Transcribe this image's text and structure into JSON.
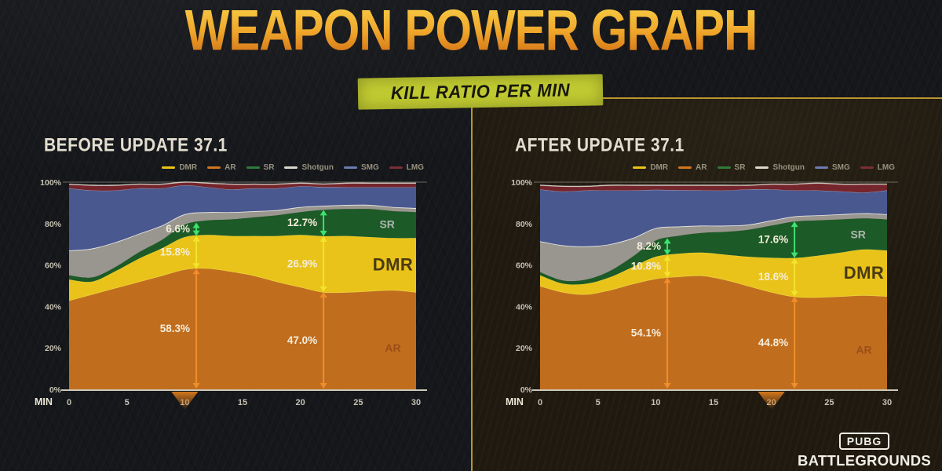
{
  "title": "WEAPON POWER GRAPH",
  "subtitle": "KILL RATIO PER MIN",
  "logo": {
    "pubg": "PUBG",
    "battlegrounds": "BATTLEGROUNDS"
  },
  "colors": {
    "accent_line": "#b9952e",
    "badge_bg": "#c2cc31",
    "arrow_sr": "#3ce36e",
    "arrow_dmr": "#f2e42c",
    "arrow_ar": "#ef8e2a"
  },
  "legend": [
    {
      "label": "DMR",
      "color": "#e9c319"
    },
    {
      "label": "AR",
      "color": "#d1761f"
    },
    {
      "label": "SR",
      "color": "#2f7a3a"
    },
    {
      "label": "Shotgun",
      "color": "#d9d6cc"
    },
    {
      "label": "SMG",
      "color": "#6d7bb0"
    },
    {
      "label": "LMG",
      "color": "#7c2e35"
    }
  ],
  "axis": {
    "x_label": "MIN",
    "x_ticks": [
      0,
      5,
      10,
      15,
      20,
      25,
      30
    ],
    "y_ticks": [
      "100%",
      "80%",
      "60%",
      "40%",
      "20%",
      "0%"
    ],
    "y_values": [
      100,
      80,
      60,
      40,
      20,
      0
    ],
    "x_range": [
      0,
      30
    ],
    "y_range": [
      0,
      100
    ]
  },
  "chart_data": [
    {
      "type": "area",
      "stacked": true,
      "title": "BEFORE UPDATE 37.1",
      "x": [
        0,
        2,
        4,
        6,
        8,
        10,
        12,
        14,
        16,
        18,
        20,
        22,
        24,
        26,
        28,
        30
      ],
      "series": [
        {
          "name": "AR",
          "fill": "#c16d1e",
          "edge": "#eccf3f",
          "edge_w": 1.6,
          "values": [
            43,
            46,
            49,
            52,
            55,
            58,
            58.5,
            57,
            55,
            52,
            49.5,
            47,
            47,
            47.5,
            48,
            47
          ]
        },
        {
          "name": "DMR",
          "fill": "#e9c319",
          "edge": "#edd84e",
          "edge_w": 0.8,
          "values": [
            10,
            6,
            8,
            11,
            13,
            15.5,
            16,
            17,
            19,
            22,
            25,
            26.9,
            27,
            26,
            25,
            26
          ]
        },
        {
          "name": "SR",
          "fill": "#1c5a27",
          "edge": "",
          "edge_w": 0,
          "values": [
            2,
            2,
            2,
            3,
            4,
            6,
            7,
            8,
            9,
            10,
            11,
            12.7,
            13,
            13.5,
            13,
            12.5
          ]
        },
        {
          "name": "Shotgun",
          "fill": "#98968e",
          "edge": "#eceae4",
          "edge_w": 1.7,
          "values": [
            12,
            14,
            12,
            9,
            7,
            5,
            4,
            3.5,
            3,
            2.5,
            2.5,
            2,
            2,
            2,
            2,
            2
          ]
        },
        {
          "name": "SMG",
          "fill": "#4a5890",
          "edge": "#a9a9bc",
          "edge_w": 0.8,
          "values": [
            30,
            28,
            25,
            22,
            18,
            14,
            12,
            11,
            11,
            10.5,
            10,
            9,
            8.5,
            8.5,
            9.5,
            10
          ]
        },
        {
          "name": "LMG",
          "fill": "#74262c",
          "edge": "#cdc5bd",
          "edge_w": 1.4,
          "values": [
            2,
            2.5,
            2.5,
            2,
            2,
            1.5,
            2,
            2.5,
            2,
            2,
            1.5,
            1.5,
            2,
            2,
            2,
            2
          ]
        }
      ],
      "annotations": [
        {
          "min": 11,
          "sr": "6.6%",
          "dmr": "15.8%",
          "ar": "58.3%"
        },
        {
          "min": 22,
          "sr": "12.7%",
          "dmr": "26.9%",
          "ar": "47.0%"
        }
      ],
      "area_labels": {
        "sr": "SR",
        "dmr": "DMR",
        "ar": "AR"
      },
      "pointer_min": 10
    },
    {
      "type": "area",
      "stacked": true,
      "title": "AFTER UPDATE 37.1",
      "x": [
        0,
        2,
        4,
        6,
        8,
        10,
        12,
        14,
        16,
        18,
        20,
        22,
        24,
        26,
        28,
        30
      ],
      "series": [
        {
          "name": "AR",
          "fill": "#c16d1e",
          "edge": "#eccf3f",
          "edge_w": 1.6,
          "values": [
            50,
            47,
            46,
            48,
            51,
            53.5,
            54.5,
            55,
            53,
            50,
            47,
            44.8,
            44.5,
            45,
            45.5,
            45
          ]
        },
        {
          "name": "DMR",
          "fill": "#e9c319",
          "edge": "#edd84e",
          "edge_w": 0.8,
          "values": [
            5,
            4,
            5,
            6,
            8,
            10.5,
            11,
            11,
            12,
            14,
            16.5,
            18.6,
            20,
            21,
            22,
            22
          ]
        },
        {
          "name": "SR",
          "fill": "#1c5a27",
          "edge": "",
          "edge_w": 0,
          "values": [
            1.5,
            1.5,
            2,
            3,
            5,
            7.8,
            8.6,
            9.5,
            11,
            13,
            15.5,
            17.6,
            17,
            16,
            15,
            15
          ]
        },
        {
          "name": "Shotgun",
          "fill": "#98968e",
          "edge": "#eceae4",
          "edge_w": 1.7,
          "values": [
            15,
            17,
            16,
            13,
            9,
            6,
            4.5,
            3.5,
            3,
            2.5,
            2.5,
            2.5,
            2.5,
            2.5,
            2.5,
            2.5
          ]
        },
        {
          "name": "SMG",
          "fill": "#4a5890",
          "edge": "#a9a9bc",
          "edge_w": 0.8,
          "values": [
            25,
            26,
            27,
            26,
            23,
            18.5,
            17.5,
            17,
            17,
            17,
            15,
            12.5,
            12,
            11,
            10,
            11.5
          ]
        },
        {
          "name": "LMG",
          "fill": "#74262c",
          "edge": "#cdc5bd",
          "edge_w": 1.4,
          "values": [
            2,
            2.5,
            2,
            2.5,
            2.5,
            2.2,
            2.4,
            2.5,
            2.5,
            2,
            2.5,
            3,
            3.5,
            3.5,
            4,
            3
          ]
        }
      ],
      "annotations": [
        {
          "min": 11,
          "sr": "8.2%",
          "dmr": "10.8%",
          "ar": "54.1%"
        },
        {
          "min": 22,
          "sr": "17.6%",
          "dmr": "18.6%",
          "ar": "44.8%"
        }
      ],
      "area_labels": {
        "sr": "SR",
        "dmr": "DMR",
        "ar": "AR"
      },
      "pointer_min": 20
    }
  ]
}
